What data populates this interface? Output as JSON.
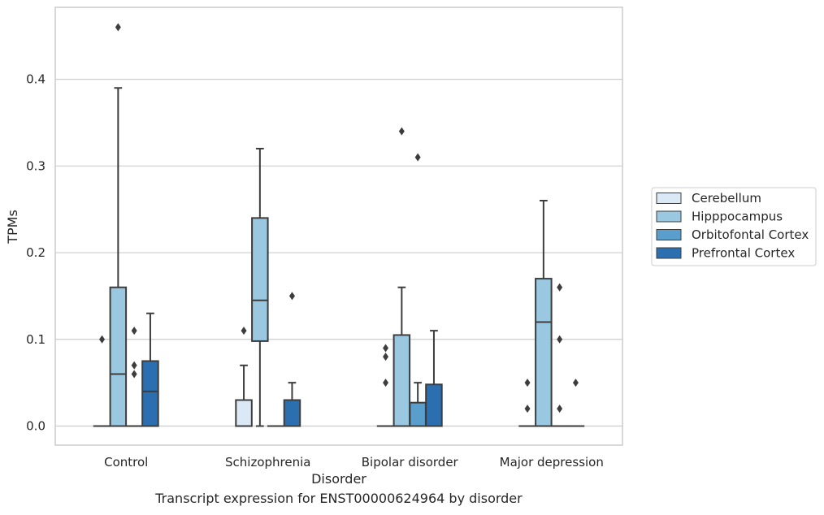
{
  "caption": "Transcript expression for ENST00000624964 by disorder",
  "chart_data": {
    "type": "box",
    "xlabel": "Disorder",
    "ylabel": "TPMs",
    "ylim": [
      -0.022,
      0.483
    ],
    "yticks": [
      0.0,
      0.1,
      0.2,
      0.3,
      0.4
    ],
    "ytick_labels": [
      "0.0",
      "0.1",
      "0.2",
      "0.3",
      "0.4"
    ],
    "grid": "horizontal",
    "legend_position": "right",
    "categories": [
      "Control",
      "Schizophrenia",
      "Bipolar disorder",
      "Major depression"
    ],
    "series": [
      {
        "name": "Cerebellum",
        "color": "#dbe9f6",
        "boxes": [
          {
            "q1": 0,
            "median": 0,
            "q3": 0,
            "whisker_low": 0,
            "whisker_high": 0,
            "outliers": [
              0.1
            ]
          },
          {
            "q1": 0,
            "median": 0,
            "q3": 0.03,
            "whisker_low": 0,
            "whisker_high": 0.07,
            "outliers": [
              0.11
            ]
          },
          {
            "q1": 0,
            "median": 0,
            "q3": 0,
            "whisker_low": 0,
            "whisker_high": 0,
            "outliers": [
              0.05,
              0.08,
              0.09
            ]
          },
          {
            "q1": 0,
            "median": 0,
            "q3": 0,
            "whisker_low": 0,
            "whisker_high": 0,
            "outliers": [
              0.02,
              0.05
            ]
          }
        ]
      },
      {
        "name": "Hipppocampus",
        "color": "#9ac8e0",
        "boxes": [
          {
            "q1": 0,
            "median": 0.06,
            "q3": 0.16,
            "whisker_low": 0,
            "whisker_high": 0.39,
            "outliers": [
              0.46
            ]
          },
          {
            "q1": 0.098,
            "median": 0.145,
            "q3": 0.24,
            "whisker_low": 0,
            "whisker_high": 0.32,
            "outliers": []
          },
          {
            "q1": 0,
            "median": 0,
            "q3": 0.105,
            "whisker_low": 0,
            "whisker_high": 0.16,
            "outliers": [
              0.34
            ]
          },
          {
            "q1": 0,
            "median": 0.12,
            "q3": 0.17,
            "whisker_low": 0,
            "whisker_high": 0.26,
            "outliers": []
          }
        ]
      },
      {
        "name": "Orbitofontal Cortex",
        "color": "#5a9ecd",
        "boxes": [
          {
            "q1": 0,
            "median": 0,
            "q3": 0,
            "whisker_low": 0,
            "whisker_high": 0,
            "outliers": [
              0.06,
              0.07,
              0.11
            ]
          },
          {
            "q1": 0,
            "median": 0,
            "q3": 0,
            "whisker_low": 0,
            "whisker_high": 0,
            "outliers": []
          },
          {
            "q1": 0,
            "median": 0,
            "q3": 0.027,
            "whisker_low": 0,
            "whisker_high": 0.05,
            "outliers": [
              0.31
            ]
          },
          {
            "q1": 0,
            "median": 0,
            "q3": 0,
            "whisker_low": 0,
            "whisker_high": 0,
            "outliers": [
              0.02,
              0.1,
              0.16
            ]
          }
        ]
      },
      {
        "name": "Prefrontal Cortex",
        "color": "#2b6fb1",
        "boxes": [
          {
            "q1": 0,
            "median": 0.04,
            "q3": 0.075,
            "whisker_low": 0,
            "whisker_high": 0.13,
            "outliers": []
          },
          {
            "q1": 0,
            "median": 0,
            "q3": 0.03,
            "whisker_low": 0,
            "whisker_high": 0.05,
            "outliers": [
              0.15
            ]
          },
          {
            "q1": 0,
            "median": 0,
            "q3": 0.048,
            "whisker_low": 0,
            "whisker_high": 0.11,
            "outliers": []
          },
          {
            "q1": 0,
            "median": 0,
            "q3": 0,
            "whisker_low": 0,
            "whisker_high": 0,
            "outliers": [
              0.05
            ]
          }
        ]
      }
    ],
    "style": {
      "frame": "#cccccc",
      "grid": "#cccccc",
      "line": "#3d3d3d"
    }
  }
}
